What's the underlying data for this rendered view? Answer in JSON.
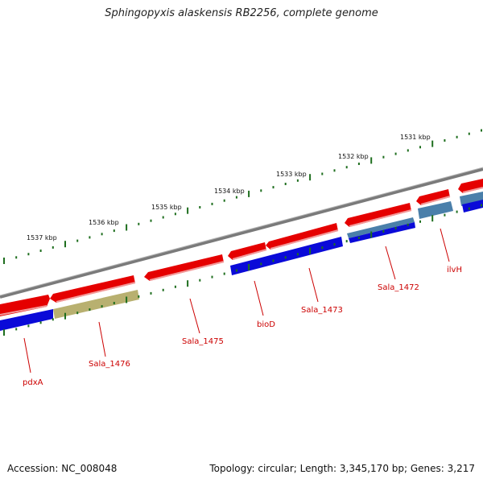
{
  "title": "Sphingopyxis alaskensis RB2256, complete genome",
  "footer": {
    "accession": "Accession: NC_008048",
    "summary": "Topology: circular; Length: 3,345,170 bp; Genes: 3,217"
  },
  "colors": {
    "forward_gene": "#e50000",
    "reverse_gene": "#0a0ad8",
    "reverse_gene_alt": "#4a7faa",
    "pseudo_gene": "#b8b070",
    "backbone": "#808080",
    "tick": "#1e6e1e",
    "label": "#cc0000"
  },
  "ruler": {
    "labels": [
      "1537 kbp",
      "1536 kbp",
      "1535 kbp",
      "1534 kbp",
      "1533 kbp",
      "1532 kbp",
      "1531 kbp"
    ]
  },
  "genes": {
    "labels": [
      "pdxA",
      "Sala_1476",
      "Sala_1475",
      "bioD",
      "Sala_1473",
      "Sala_1472",
      "ilvH"
    ]
  }
}
